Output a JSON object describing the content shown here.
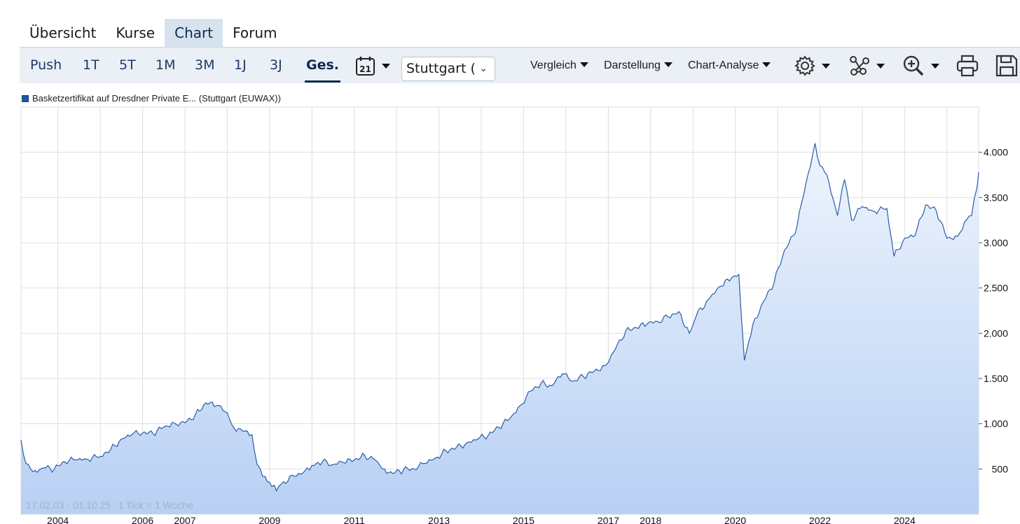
{
  "tabs": [
    {
      "label": "Übersicht",
      "active": false
    },
    {
      "label": "Kurse",
      "active": false
    },
    {
      "label": "Chart",
      "active": true
    },
    {
      "label": "Forum",
      "active": false
    }
  ],
  "toolbar": {
    "ranges": [
      {
        "label": "Push",
        "active": false
      },
      {
        "label": "1T",
        "active": false
      },
      {
        "label": "5T",
        "active": false
      },
      {
        "label": "1M",
        "active": false
      },
      {
        "label": "3M",
        "active": false
      },
      {
        "label": "1J",
        "active": false
      },
      {
        "label": "3J",
        "active": false
      },
      {
        "label": "Ges.",
        "active": true
      }
    ],
    "calendar_day": "21",
    "exchange_select": "Stuttgart (",
    "menus": [
      "Vergleich",
      "Darstellung",
      "Chart-Analyse"
    ],
    "icons": [
      "gear-icon",
      "network-icon",
      "zoom-in-icon",
      "print-icon",
      "save-icon"
    ]
  },
  "legend": {
    "label": "Basketzertifikat auf Dresdner Private E... (Stuttgart (EUWAX))",
    "color": "#2255aa"
  },
  "date_range": "17.02.03 - 01.10.25",
  "tick_note": "1 Tick = 1 Woche",
  "chart_data": {
    "type": "area",
    "y_ticks": [
      "4.000",
      "3.500",
      "3.000",
      "2.500",
      "2.000",
      "1.500",
      "1.000",
      "500"
    ],
    "x_ticks": [
      "2004",
      "2006",
      "2007",
      "2009",
      "2011",
      "2013",
      "2015",
      "2017",
      "2018",
      "2020",
      "2022",
      "2024"
    ],
    "ylim": [
      0,
      4500
    ],
    "xlim": [
      "2003-02-17",
      "2025-10-01"
    ],
    "series": [
      {
        "line_color": "#2a5ca8",
        "fill_top": "#eef4fd",
        "fill_bottom": "#b8d0f4",
        "points": [
          [
            "2003-02-17",
            820
          ],
          [
            "2003-04-01",
            560
          ],
          [
            "2003-06-01",
            470
          ],
          [
            "2003-09-01",
            510
          ],
          [
            "2003-12-01",
            500
          ],
          [
            "2004-03-01",
            580
          ],
          [
            "2004-06-01",
            600
          ],
          [
            "2004-09-01",
            610
          ],
          [
            "2005-01-01",
            640
          ],
          [
            "2005-04-01",
            720
          ],
          [
            "2005-07-01",
            830
          ],
          [
            "2005-10-01",
            880
          ],
          [
            "2006-01-01",
            900
          ],
          [
            "2006-04-01",
            890
          ],
          [
            "2006-07-01",
            960
          ],
          [
            "2006-10-01",
            1010
          ],
          [
            "2007-01-01",
            1010
          ],
          [
            "2007-04-01",
            1100
          ],
          [
            "2007-07-01",
            1230
          ],
          [
            "2007-10-01",
            1200
          ],
          [
            "2008-01-01",
            1120
          ],
          [
            "2008-03-01",
            950
          ],
          [
            "2008-06-01",
            920
          ],
          [
            "2008-08-01",
            880
          ],
          [
            "2008-09-15",
            550
          ],
          [
            "2008-11-01",
            420
          ],
          [
            "2009-01-01",
            350
          ],
          [
            "2009-03-01",
            260
          ],
          [
            "2009-05-01",
            360
          ],
          [
            "2009-08-01",
            420
          ],
          [
            "2009-11-01",
            480
          ],
          [
            "2010-01-01",
            540
          ],
          [
            "2010-04-01",
            580
          ],
          [
            "2010-07-01",
            550
          ],
          [
            "2010-10-01",
            570
          ],
          [
            "2011-01-01",
            600
          ],
          [
            "2011-04-01",
            650
          ],
          [
            "2011-07-01",
            600
          ],
          [
            "2011-09-01",
            500
          ],
          [
            "2011-12-01",
            450
          ],
          [
            "2012-03-01",
            490
          ],
          [
            "2012-06-01",
            500
          ],
          [
            "2012-09-01",
            560
          ],
          [
            "2012-12-01",
            620
          ],
          [
            "2013-03-01",
            700
          ],
          [
            "2013-06-01",
            740
          ],
          [
            "2013-09-01",
            790
          ],
          [
            "2013-12-01",
            830
          ],
          [
            "2014-03-01",
            870
          ],
          [
            "2014-06-01",
            960
          ],
          [
            "2014-09-01",
            1050
          ],
          [
            "2014-12-01",
            1200
          ],
          [
            "2015-03-01",
            1360
          ],
          [
            "2015-06-01",
            1450
          ],
          [
            "2015-09-01",
            1420
          ],
          [
            "2015-12-01",
            1550
          ],
          [
            "2016-03-01",
            1470
          ],
          [
            "2016-06-01",
            1520
          ],
          [
            "2016-09-01",
            1580
          ],
          [
            "2016-12-01",
            1640
          ],
          [
            "2017-03-01",
            1820
          ],
          [
            "2017-06-01",
            2030
          ],
          [
            "2017-09-01",
            2060
          ],
          [
            "2017-12-01",
            2100
          ],
          [
            "2018-03-01",
            2130
          ],
          [
            "2018-06-01",
            2180
          ],
          [
            "2018-09-01",
            2240
          ],
          [
            "2018-12-01",
            2000
          ],
          [
            "2019-02-01",
            2200
          ],
          [
            "2019-06-01",
            2400
          ],
          [
            "2019-09-01",
            2520
          ],
          [
            "2019-12-01",
            2610
          ],
          [
            "2020-02-01",
            2650
          ],
          [
            "2020-03-20",
            1700
          ],
          [
            "2020-06-01",
            2100
          ],
          [
            "2020-09-01",
            2350
          ],
          [
            "2020-12-01",
            2560
          ],
          [
            "2021-03-01",
            2920
          ],
          [
            "2021-06-01",
            3100
          ],
          [
            "2021-09-01",
            3650
          ],
          [
            "2021-11-20",
            4100
          ],
          [
            "2022-01-01",
            3850
          ],
          [
            "2022-03-01",
            3750
          ],
          [
            "2022-06-01",
            3300
          ],
          [
            "2022-08-01",
            3700
          ],
          [
            "2022-10-01",
            3250
          ],
          [
            "2023-01-01",
            3400
          ],
          [
            "2023-04-01",
            3350
          ],
          [
            "2023-08-01",
            3380
          ],
          [
            "2023-10-01",
            2850
          ],
          [
            "2024-01-01",
            3050
          ],
          [
            "2024-04-01",
            3080
          ],
          [
            "2024-07-01",
            3420
          ],
          [
            "2024-10-01",
            3350
          ],
          [
            "2025-01-01",
            3050
          ],
          [
            "2025-04-01",
            3070
          ],
          [
            "2025-06-01",
            3230
          ],
          [
            "2025-08-01",
            3300
          ],
          [
            "2025-09-15",
            3600
          ],
          [
            "2025-10-01",
            3780
          ]
        ]
      }
    ]
  }
}
